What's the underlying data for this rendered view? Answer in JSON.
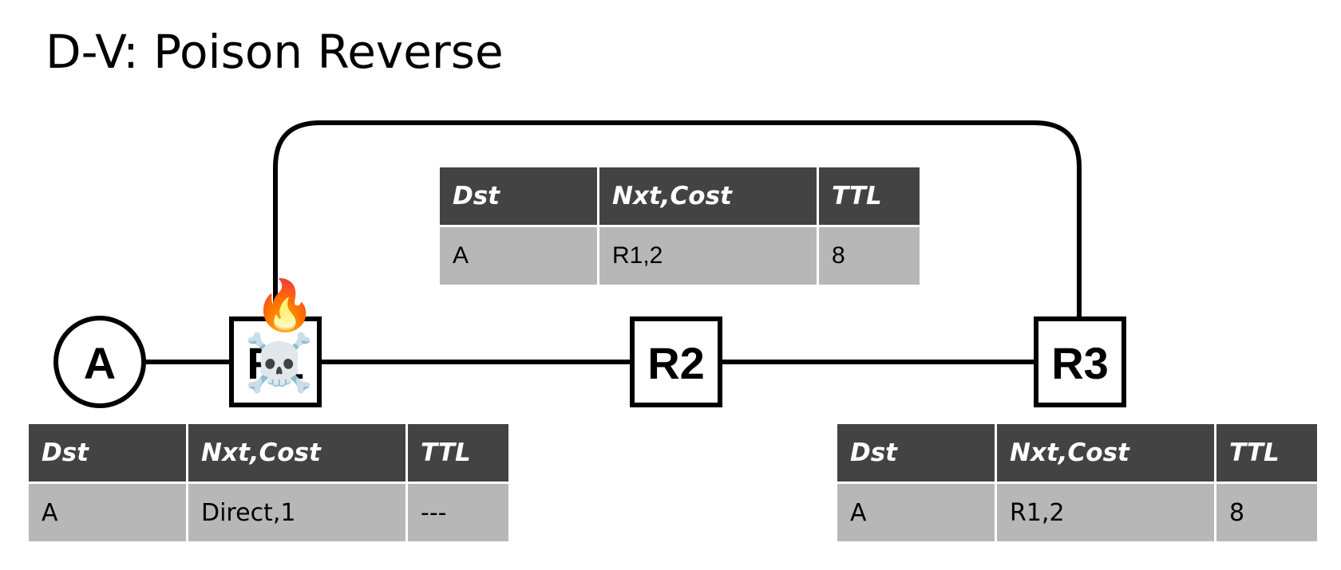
{
  "title": "D-V: Poison Reverse",
  "nodes": {
    "a": "A",
    "r1": "R1",
    "r2": "R2",
    "r3": "R3"
  },
  "icons": {
    "fire": "🔥",
    "skull": "☠️"
  },
  "tables": {
    "r1": {
      "headers": [
        "Dst",
        "Nxt,Cost",
        "TTL"
      ],
      "row": [
        "A",
        "Direct,1",
        "---"
      ]
    },
    "r2": {
      "headers": [
        "Dst",
        "Nxt,Cost",
        "TTL"
      ],
      "row": [
        "A",
        "R1,2",
        "8"
      ]
    },
    "r3": {
      "headers": [
        "Dst",
        "Nxt,Cost",
        "TTL"
      ],
      "row": [
        "A",
        "R1,2",
        "8"
      ]
    }
  },
  "colors": {
    "header_bg": "#434343",
    "cell_bg": "#b7b7b7",
    "line": "#000000"
  }
}
